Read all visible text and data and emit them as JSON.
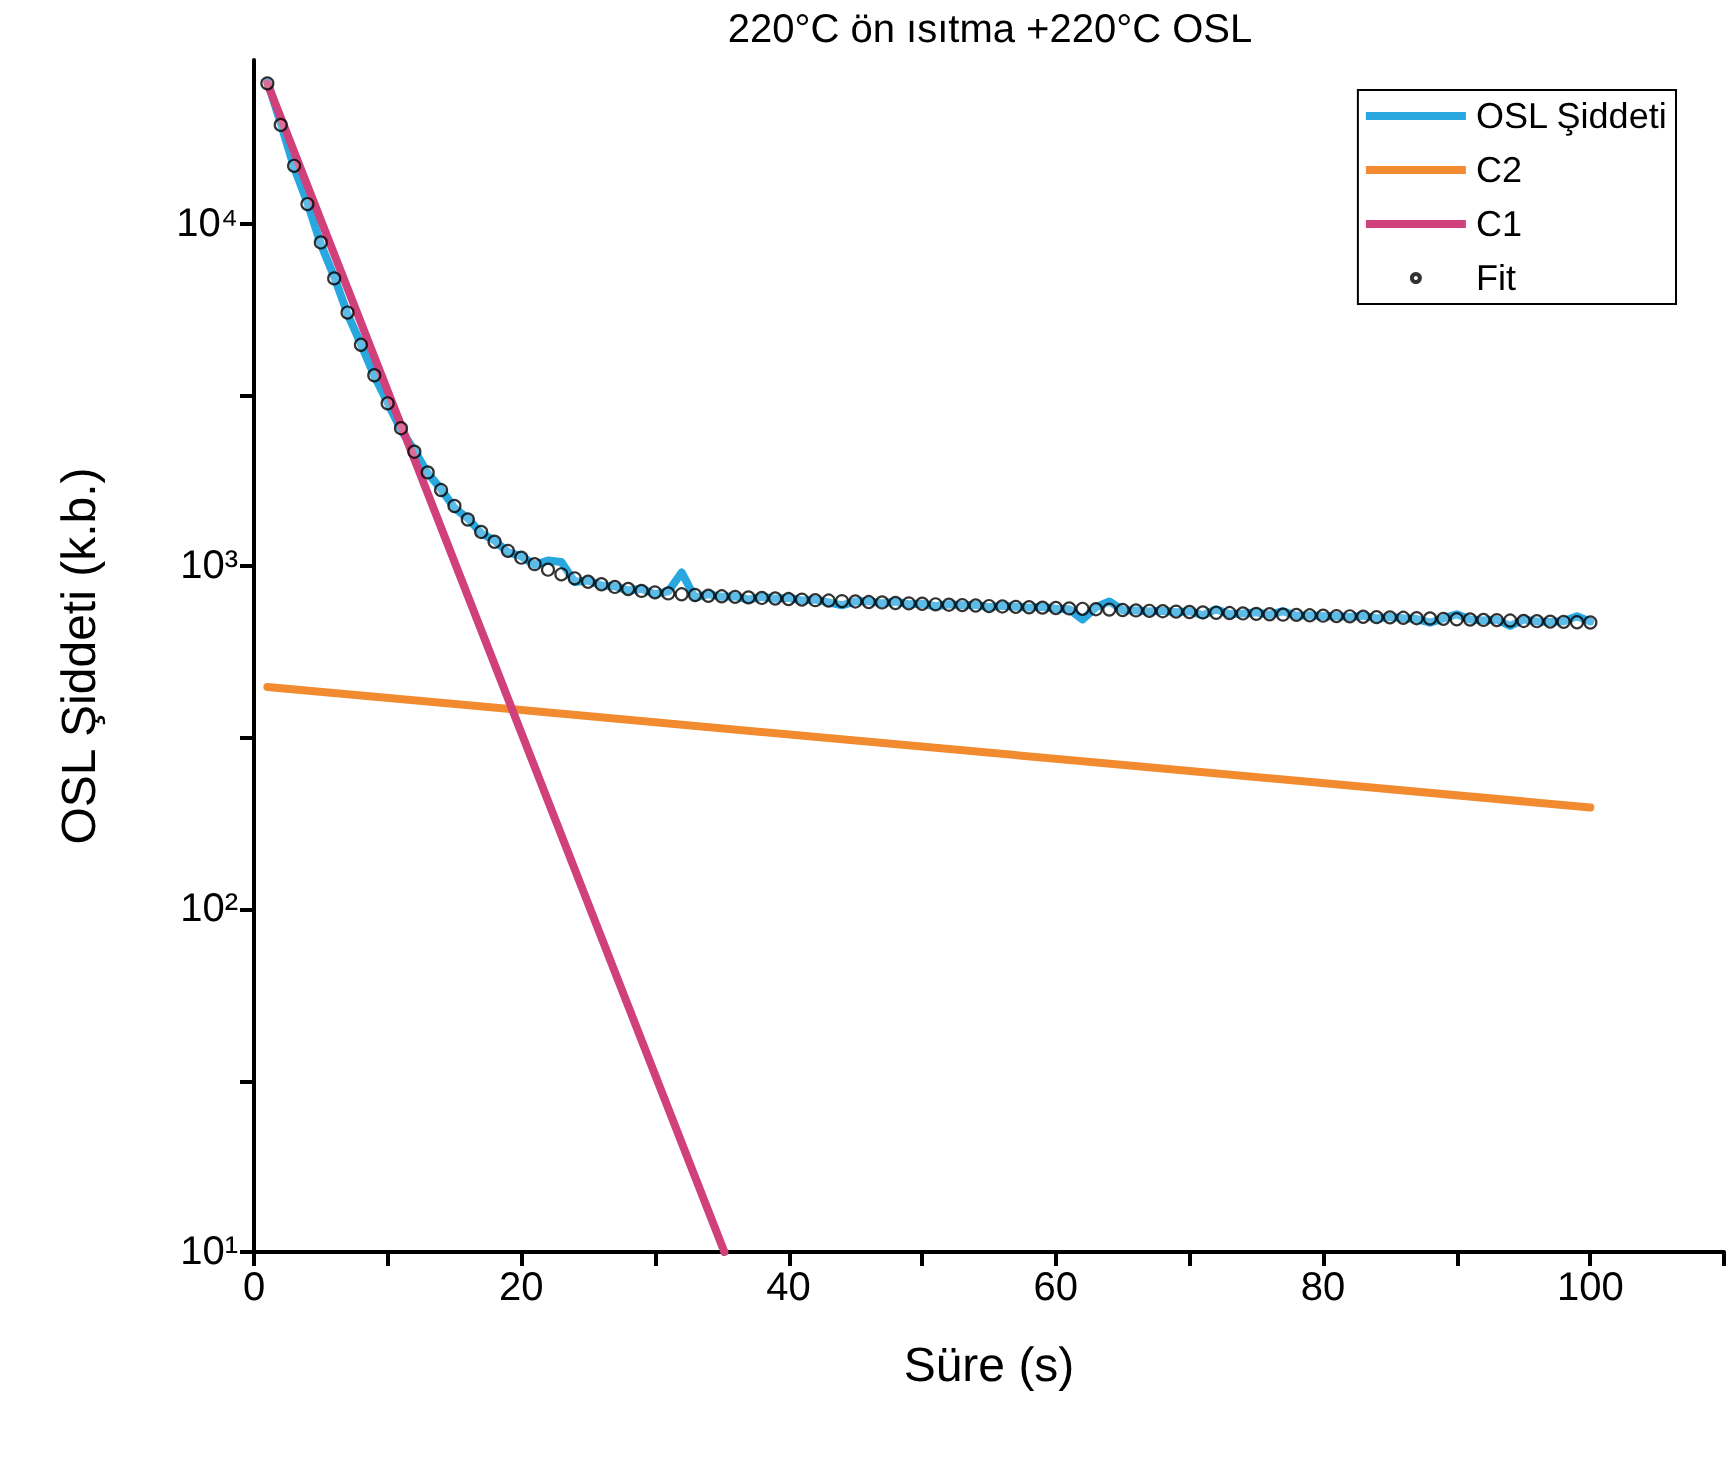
{
  "chart_data": {
    "type": "line",
    "title": "220°C ön ısıtma +220°C OSL",
    "xlabel": "Süre (s)",
    "ylabel": "OSL Şiddeti (k.b.)",
    "log": "y",
    "grid": false,
    "legend": "top right",
    "line_style": "solid",
    "marker": "none",
    "xlim": [
      0,
      110
    ],
    "xticks": [
      0,
      {
        "value": 10,
        "label": null
      },
      20,
      {
        "value": 30,
        "label": null
      },
      40,
      {
        "value": 50,
        "label": null
      },
      60,
      {
        "value": 70,
        "label": null
      },
      80,
      {
        "value": 90,
        "label": null
      },
      100,
      {
        "value": 110,
        "label": null
      }
    ],
    "ylim": [
      10,
      30000
    ],
    "yticks": [
      {
        "value": 10,
        "label": "10¹"
      },
      {
        "value": 31.6,
        "label": null
      },
      {
        "value": 100,
        "label": "10²"
      },
      {
        "value": 316,
        "label": null
      },
      {
        "value": 1000,
        "label": "10³"
      },
      {
        "value": 3162,
        "label": null
      },
      {
        "value": 10000,
        "label": "10⁴"
      }
    ],
    "series": [
      {
        "name": "OSL Şiddeti",
        "color": "#29a8e0",
        "x": [
          1,
          2,
          3,
          4,
          5,
          6,
          7,
          8,
          9,
          10,
          11,
          12,
          13,
          14,
          15,
          16,
          17,
          18,
          19,
          20,
          21,
          22,
          23,
          24,
          25,
          26,
          27,
          28,
          29,
          30,
          31,
          32,
          33,
          34,
          35,
          36,
          37,
          38,
          39,
          40,
          41,
          42,
          43,
          44,
          45,
          46,
          47,
          48,
          49,
          50,
          51,
          52,
          53,
          54,
          55,
          56,
          57,
          58,
          59,
          60,
          61,
          62,
          63,
          64,
          65,
          66,
          67,
          68,
          69,
          70,
          71,
          72,
          73,
          74,
          75,
          76,
          77,
          78,
          79,
          80,
          81,
          82,
          83,
          84,
          85,
          86,
          87,
          88,
          89,
          90,
          91,
          92,
          93,
          94,
          95,
          96,
          97,
          98,
          99,
          100
        ],
        "values": [
          26000,
          19600,
          14600,
          11500,
          8700,
          7000,
          5450,
          4450,
          3600,
          3000,
          2500,
          2180,
          1870,
          1680,
          1480,
          1380,
          1250,
          1190,
          1100,
          1070,
          1010,
          1040,
          1030,
          900,
          910,
          880,
          875,
          850,
          860,
          830,
          845,
          960,
          810,
          830,
          815,
          818,
          800,
          815,
          805,
          810,
          795,
          800,
          785,
          770,
          790,
          792,
          780,
          790,
          775,
          778,
          765,
          775,
          770,
          772,
          760,
          768,
          762,
          758,
          762,
          752,
          750,
          700,
          760,
          790,
          745,
          744,
          738,
          742,
          735,
          740,
          720,
          750,
          725,
          729,
          735,
          722,
          740,
          718,
          720,
          715,
          716,
          712,
          718,
          705,
          712,
          706,
          702,
          685,
          705,
          725,
          700,
          695,
          700,
          670,
          700,
          690,
          688,
          692,
          715,
          690
        ]
      },
      {
        "name": "C2",
        "color": "#f28a30",
        "x": [
          1,
          100
        ],
        "values": [
          445,
          198
        ]
      },
      {
        "name": "C1",
        "color": "#d0407a",
        "x": [
          1,
          35.2
        ],
        "values": [
          25650,
          10
        ]
      },
      {
        "name": "Fit",
        "type": "scatter",
        "marker": "circle",
        "color": "#000000",
        "x": [
          1,
          2,
          3,
          4,
          5,
          6,
          7,
          8,
          9,
          10,
          11,
          12,
          13,
          14,
          15,
          16,
          17,
          18,
          19,
          20,
          21,
          22,
          23,
          24,
          25,
          26,
          27,
          28,
          29,
          30,
          31,
          32,
          33,
          34,
          35,
          36,
          37,
          38,
          39,
          40,
          41,
          42,
          43,
          44,
          45,
          46,
          47,
          48,
          49,
          50,
          51,
          52,
          53,
          54,
          55,
          56,
          57,
          58,
          59,
          60,
          61,
          62,
          63,
          64,
          65,
          66,
          67,
          68,
          69,
          70,
          71,
          72,
          73,
          74,
          75,
          76,
          77,
          78,
          79,
          80,
          81,
          82,
          83,
          84,
          85,
          86,
          87,
          88,
          89,
          90,
          91,
          92,
          93,
          94,
          95,
          96,
          97,
          98,
          99,
          100
        ],
        "values": [
          25650,
          19400,
          14740,
          11400,
          8810,
          6920,
          5500,
          4430,
          3610,
          2990,
          2530,
          2160,
          1880,
          1670,
          1500,
          1370,
          1260,
          1180,
          1110,
          1060,
          1015,
          978,
          948,
          923,
          902,
          887,
          871,
          859,
          848,
          840,
          834,
          829,
          825,
          821,
          818,
          815,
          812,
          809,
          806,
          803,
          800,
          797,
          795,
          792,
          790,
          787,
          785,
          782,
          780,
          778,
          775,
          773,
          771,
          769,
          766,
          764,
          762,
          760,
          758,
          756,
          754,
          752,
          750,
          748,
          746,
          744,
          742,
          740,
          738,
          736,
          734,
          732,
          731,
          729,
          727,
          725,
          723,
          722,
          720,
          718,
          716,
          715,
          713,
          711,
          710,
          708,
          706,
          705,
          703,
          701,
          700,
          698,
          697,
          695,
          693,
          692,
          690,
          689,
          687,
          686
        ]
      }
    ]
  }
}
